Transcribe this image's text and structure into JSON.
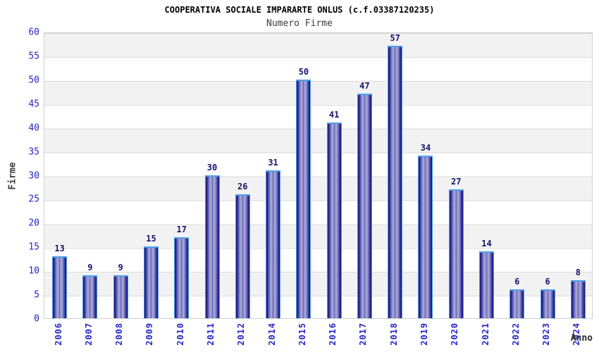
{
  "header": {
    "title": "COOPERATIVA SOCIALE IMPARARTE ONLUS (c.f.03387120235)",
    "subtitle": "Numero Firme"
  },
  "chart_data": {
    "type": "bar",
    "title": "COOPERATIVA SOCIALE IMPARARTE ONLUS (c.f.03387120235)",
    "subtitle": "Numero Firme",
    "categories": [
      "2006",
      "2007",
      "2008",
      "2009",
      "2010",
      "2011",
      "2012",
      "2014",
      "2015",
      "2016",
      "2017",
      "2018",
      "2019",
      "2020",
      "2021",
      "2022",
      "2023",
      "2024"
    ],
    "values": [
      13,
      9,
      9,
      15,
      17,
      30,
      26,
      31,
      50,
      41,
      47,
      57,
      34,
      27,
      14,
      6,
      6,
      8
    ],
    "xlabel": "Anno",
    "ylabel": "Firme",
    "ylim": [
      0,
      60
    ],
    "yticks": [
      0,
      5,
      10,
      15,
      20,
      25,
      30,
      35,
      40,
      45,
      50,
      55,
      60
    ],
    "grid": true,
    "legend_position": "none",
    "colors": {
      "bar_dark": "#14147a",
      "bar_light": "#aeaede",
      "bar_border": "#4da0e8",
      "value_label": "#14146e",
      "tick_label": "#2626c9",
      "band_gray": "#f2f2f2",
      "band_white": "#ffffff",
      "gridline": "#d9d9d9"
    }
  }
}
